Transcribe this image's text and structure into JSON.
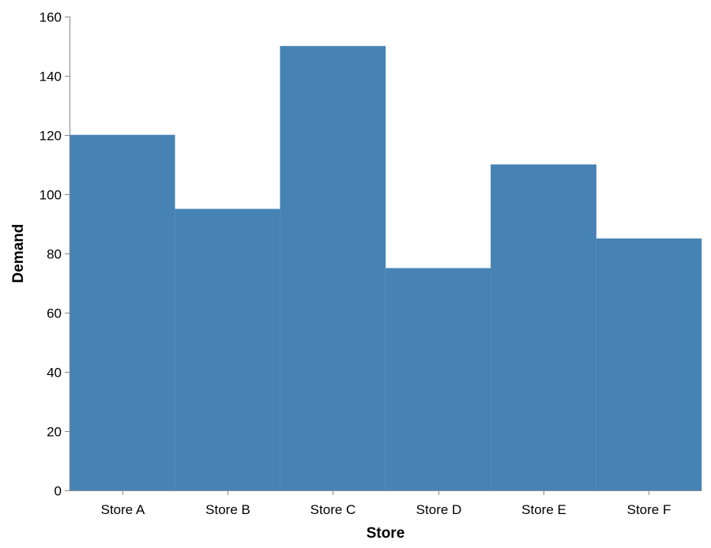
{
  "chart_data": {
    "type": "bar",
    "title": "",
    "xlabel": "Store",
    "ylabel": "Demand",
    "categories": [
      "Store A",
      "Store B",
      "Store C",
      "Store D",
      "Store E",
      "Store F"
    ],
    "values": [
      120,
      95,
      150,
      75,
      110,
      85
    ],
    "ylim": [
      0,
      160
    ],
    "yticks": [
      0,
      20,
      40,
      60,
      80,
      100,
      120,
      140,
      160
    ],
    "grid": false,
    "legend": "none",
    "bar_color": "#4682b4"
  }
}
